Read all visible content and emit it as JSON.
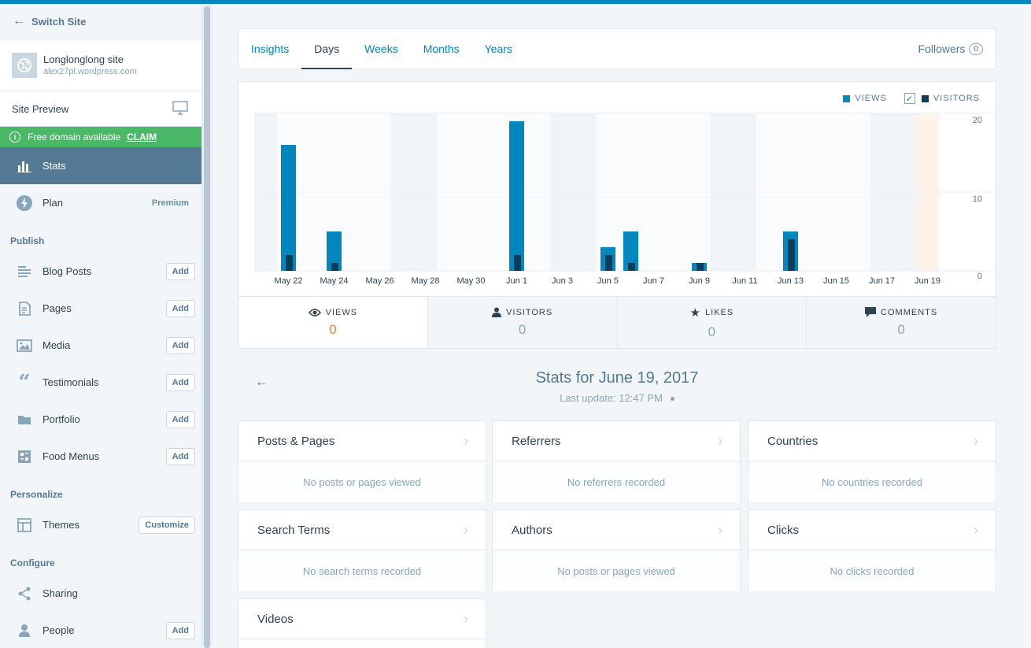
{
  "sidebar": {
    "switch_site": "Switch Site",
    "site_name": "Longlonglong site",
    "site_url": "alex27pl.wordpress.com",
    "site_preview": "Site Preview",
    "domain_banner": "Free domain available",
    "claim": "CLAIM",
    "stats": "Stats",
    "plan": "Plan",
    "plan_badge": "Premium",
    "publish_header": "Publish",
    "publish_items": [
      {
        "label": "Blog Posts",
        "action": "Add"
      },
      {
        "label": "Pages",
        "action": "Add"
      },
      {
        "label": "Media",
        "action": "Add"
      },
      {
        "label": "Testimonials",
        "action": "Add"
      },
      {
        "label": "Portfolio",
        "action": "Add"
      },
      {
        "label": "Food Menus",
        "action": "Add"
      }
    ],
    "personalize_header": "Personalize",
    "themes": "Themes",
    "themes_action": "Customize",
    "configure_header": "Configure",
    "sharing": "Sharing",
    "people": "People",
    "people_action": "Add"
  },
  "tabs": {
    "items": [
      "Insights",
      "Days",
      "Weeks",
      "Months",
      "Years"
    ],
    "active": "Days",
    "followers_label": "Followers",
    "followers_count": "0"
  },
  "legend": {
    "views": "VIEWS",
    "visitors": "VISITORS",
    "checkmark": "✓"
  },
  "chart_data": {
    "type": "bar",
    "categories": [
      "May 21",
      "May 22",
      "May 23",
      "May 24",
      "May 25",
      "May 26",
      "May 27",
      "May 28",
      "May 29",
      "May 30",
      "May 31",
      "Jun 1",
      "Jun 2",
      "Jun 3",
      "Jun 4",
      "Jun 5",
      "Jun 6",
      "Jun 7",
      "Jun 8",
      "Jun 9",
      "Jun 10",
      "Jun 11",
      "Jun 12",
      "Jun 13",
      "Jun 14",
      "Jun 15",
      "Jun 16",
      "Jun 17",
      "Jun 18",
      "Jun 19"
    ],
    "tick_labels": [
      "May 22",
      "May 24",
      "May 26",
      "May 28",
      "May 30",
      "Jun 1",
      "Jun 3",
      "Jun 5",
      "Jun 7",
      "Jun 9",
      "Jun 11",
      "Jun 13",
      "Jun 15",
      "Jun 17",
      "Jun 19"
    ],
    "series": [
      {
        "name": "VIEWS",
        "color": "#0087be",
        "values": [
          0,
          16,
          0,
          5,
          0,
          0,
          0,
          0,
          0,
          0,
          0,
          19,
          0,
          0,
          0,
          3,
          5,
          0,
          0,
          1,
          0,
          0,
          0,
          5,
          0,
          0,
          0,
          0,
          0,
          0
        ]
      },
      {
        "name": "VISITORS",
        "color": "#0d3b58",
        "values": [
          0,
          2,
          0,
          1,
          0,
          0,
          0,
          0,
          0,
          0,
          0,
          2,
          0,
          0,
          0,
          2,
          1,
          0,
          0,
          1,
          0,
          0,
          0,
          4,
          0,
          0,
          0,
          0,
          0,
          0
        ]
      }
    ],
    "weekend_categories": [
      "May 21",
      "May 27",
      "May 28",
      "Jun 3",
      "Jun 4",
      "Jun 10",
      "Jun 11",
      "Jun 17",
      "Jun 18"
    ],
    "selected_category": "Jun 19",
    "y_ticks": [
      "20",
      "10",
      "0"
    ],
    "ylim": [
      0,
      20
    ]
  },
  "summary": [
    {
      "label": "VIEWS",
      "value": "0"
    },
    {
      "label": "VISITORS",
      "value": "0"
    },
    {
      "label": "LIKES",
      "value": "0"
    },
    {
      "label": "COMMENTS",
      "value": "0"
    }
  ],
  "stats_header": {
    "title": "Stats for June 19, 2017",
    "last_update": "Last update: 12:47 PM"
  },
  "modules": [
    {
      "title": "Posts & Pages",
      "empty": "No posts or pages viewed"
    },
    {
      "title": "Referrers",
      "empty": "No referrers recorded"
    },
    {
      "title": "Countries",
      "empty": "No countries recorded"
    },
    {
      "title": "Search Terms",
      "empty": "No search terms recorded"
    },
    {
      "title": "Authors",
      "empty": "No posts or pages viewed"
    },
    {
      "title": "Clicks",
      "empty": "No clicks recorded"
    },
    {
      "title": "Videos",
      "empty": ""
    }
  ]
}
